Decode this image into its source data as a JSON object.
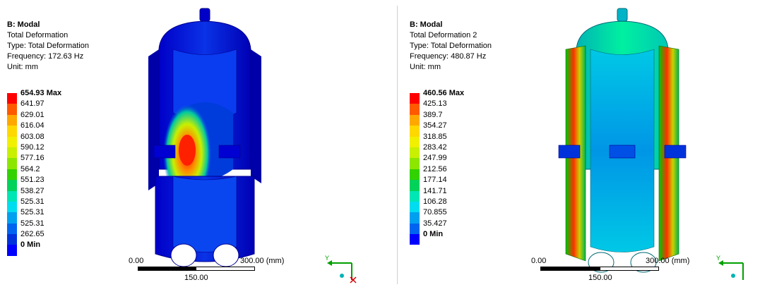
{
  "left": {
    "title": "B: Modal",
    "result_name": "Total Deformation",
    "type": "Type: Total Deformation",
    "frequency": "Frequency: 172.63 Hz",
    "unit": "Unit: mm",
    "legend": [
      {
        "label": "654.93 Max",
        "bold": true,
        "color": "#ff0000"
      },
      {
        "label": "641.97",
        "color": "#ff5a00"
      },
      {
        "label": "629.01",
        "color": "#ffa800"
      },
      {
        "label": "616.04",
        "color": "#ffd800"
      },
      {
        "label": "603.08",
        "color": "#f0f000"
      },
      {
        "label": "590.12",
        "color": "#c8f000"
      },
      {
        "label": "577.16",
        "color": "#8ce600"
      },
      {
        "label": "564.2",
        "color": "#32d200"
      },
      {
        "label": "551.23",
        "color": "#00d25a"
      },
      {
        "label": "538.27",
        "color": "#00e6b4"
      },
      {
        "label": "525.31",
        "color": "#00dcf0"
      },
      {
        "label": "525.31",
        "color": "#00a0f0"
      },
      {
        "label": "525.31",
        "color": "#0064f0"
      },
      {
        "label": "262.65",
        "color": "#0032dc"
      },
      {
        "label": "0 Min",
        "bold": true,
        "color": "#0000ff"
      }
    ],
    "scale": {
      "start": "0.00",
      "end": "300.00 (mm)",
      "mid": "150.00"
    }
  },
  "right": {
    "title": "B: Modal",
    "result_name": "Total Deformation 2",
    "type": "Type: Total Deformation",
    "frequency": "Frequency: 480.87 Hz",
    "unit": "Unit: mm",
    "legend": [
      {
        "label": "460.56 Max",
        "bold": true,
        "color": "#ff0000"
      },
      {
        "label": "425.13",
        "color": "#ff5a00"
      },
      {
        "label": "389.7",
        "color": "#ffa800"
      },
      {
        "label": "354.27",
        "color": "#ffd800"
      },
      {
        "label": "318.85",
        "color": "#f0f000"
      },
      {
        "label": "283.42",
        "color": "#c8f000"
      },
      {
        "label": "247.99",
        "color": "#8ce600"
      },
      {
        "label": "212.56",
        "color": "#32d200"
      },
      {
        "label": "177.14",
        "color": "#00d25a"
      },
      {
        "label": "141.71",
        "color": "#00e6b4"
      },
      {
        "label": "106.28",
        "color": "#00dcf0"
      },
      {
        "label": "70.855",
        "color": "#00a0f0"
      },
      {
        "label": "35.427",
        "color": "#0064f0"
      },
      {
        "label": "0 Min",
        "bold": true,
        "color": "#0000ff"
      }
    ],
    "scale": {
      "start": "0.00",
      "end": "300.00 (mm)",
      "mid": "150.00"
    }
  },
  "triad": {
    "y_label": "Y",
    "x_label": "X",
    "z_label": "Z"
  }
}
